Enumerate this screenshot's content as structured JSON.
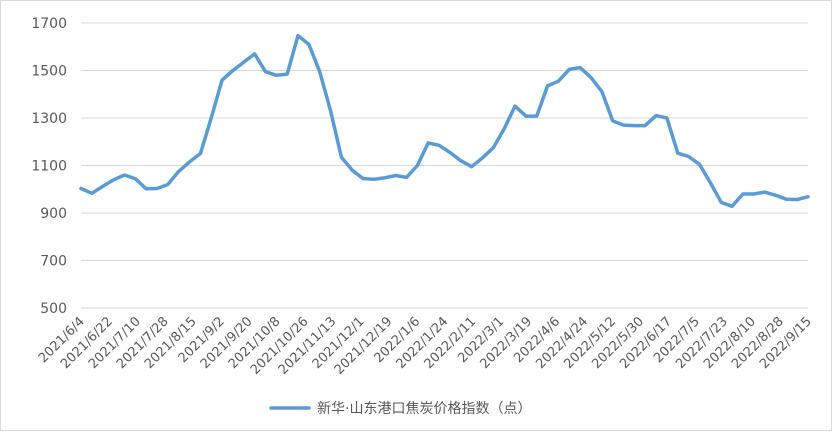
{
  "chart_data": {
    "type": "line",
    "title": "",
    "xlabel": "",
    "ylabel": "",
    "ylim": [
      500,
      1700
    ],
    "yticks": [
      500,
      700,
      900,
      1100,
      1300,
      1500,
      1700
    ],
    "grid": "horizontal",
    "legend_position": "bottom",
    "x_tick_labels": [
      "2021/6/4",
      "2021/6/22",
      "2021/7/10",
      "2021/7/28",
      "2021/8/15",
      "2021/9/2",
      "2021/9/20",
      "2021/10/8",
      "2021/10/26",
      "2021/11/13",
      "2021/12/1",
      "2021/12/19",
      "2022/1/6",
      "2022/1/24",
      "2022/2/11",
      "2022/3/1",
      "2022/3/19",
      "2022/4/6",
      "2022/4/24",
      "2022/5/12",
      "2022/5/30",
      "2022/6/17",
      "2022/7/5",
      "2022/7/23",
      "2022/8/10",
      "2022/8/28",
      "2022/9/15"
    ],
    "series": [
      {
        "name": "新华·山东港口焦炭价格指数（点）",
        "color": "#5b9bd5",
        "values": [
          1003,
          983,
          1012,
          1040,
          1060,
          1045,
          1002,
          1003,
          1020,
          1075,
          1115,
          1150,
          1300,
          1460,
          1500,
          1535,
          1570,
          1495,
          1480,
          1485,
          1647,
          1610,
          1495,
          1330,
          1135,
          1080,
          1045,
          1042,
          1048,
          1058,
          1050,
          1100,
          1195,
          1185,
          1155,
          1120,
          1095,
          1132,
          1175,
          1255,
          1350,
          1308,
          1308,
          1435,
          1455,
          1505,
          1512,
          1470,
          1412,
          1288,
          1270,
          1268,
          1268,
          1310,
          1300,
          1152,
          1138,
          1105,
          1028,
          945,
          928,
          980,
          980,
          988,
          975,
          958,
          957,
          968
        ]
      }
    ]
  }
}
